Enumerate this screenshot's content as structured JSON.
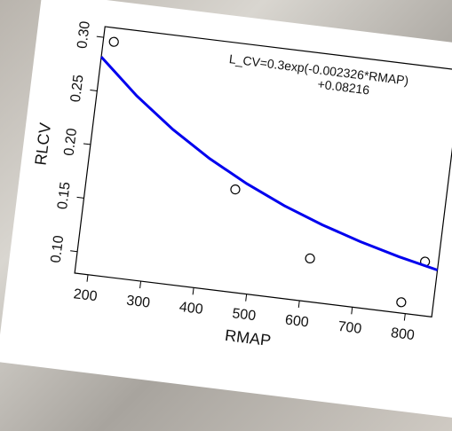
{
  "chart_data": {
    "type": "scatter",
    "x_label": "RMAP",
    "y_label": "RLCV",
    "annotation": [
      "L_CV=0.3exp(-0.002326*RMAP)",
      "+0.08216"
    ],
    "xlim": [
      175,
      850
    ],
    "ylim": [
      0.08,
      0.31
    ],
    "xticks": [
      200,
      300,
      400,
      500,
      600,
      700,
      800
    ],
    "yticks": [
      {
        "value": 0.1,
        "label": "0.10"
      },
      {
        "value": 0.15,
        "label": "0.15"
      },
      {
        "value": 0.2,
        "label": "0.20"
      },
      {
        "value": 0.25,
        "label": "0.25"
      },
      {
        "value": 0.3,
        "label": "0.30"
      }
    ],
    "series": [
      {
        "kind": "points",
        "color": "#000000",
        "x": [
          195,
          455,
          610,
          790,
          825
        ],
        "values": [
          0.297,
          0.175,
          0.12,
          0.09,
          0.13
        ]
      },
      {
        "kind": "line",
        "color": "#0000ee",
        "x": [
          175,
          250,
          325,
          400,
          475,
          550,
          625,
          700,
          775,
          850
        ],
        "values": [
          0.2818,
          0.2499,
          0.2231,
          0.2005,
          0.1816,
          0.1656,
          0.1523,
          0.1411,
          0.1316,
          0.1237
        ]
      }
    ]
  }
}
